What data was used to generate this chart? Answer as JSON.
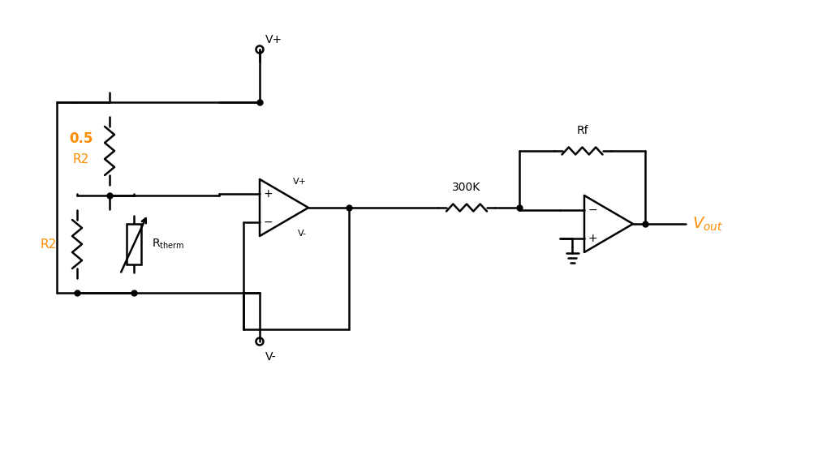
{
  "bg_color": "#ffffff",
  "line_color": "#000000",
  "label_color_orange": "#FF8C00",
  "label_color_black": "#000000",
  "figsize": [
    10.24,
    5.56
  ],
  "dpi": 100,
  "title": "",
  "components": {
    "R2_top_label": "0.5",
    "R2_top_sublabel": "R2",
    "R2_bottom_label": "R2",
    "Rtherm_label": "Rₚₕₑ⭣ₘ",
    "R300K_label": "300K",
    "Rf_label": "Rf",
    "Vout_label": "V",
    "Vout_sublabel": "out",
    "Vplus_label": "V+",
    "Vminus_label": "V-",
    "Vplus_pin_label": "V+",
    "Vminus_pin_label": "V-"
  }
}
